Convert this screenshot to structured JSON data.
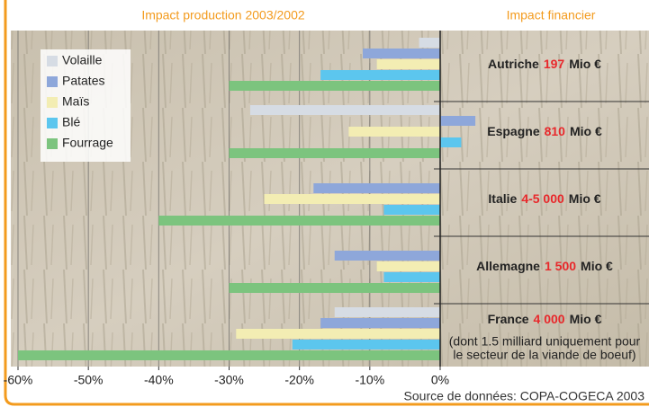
{
  "chart_data": {
    "type": "bar",
    "orientation": "horizontal",
    "title": "Impact production 2003/2002",
    "right_title": "Impact financier",
    "source": "Source de données: COPA-COGECA 2003",
    "categories": [
      "Autriche",
      "Espagne",
      "Italie",
      "Allemagne",
      "France"
    ],
    "series": [
      {
        "name": "Volaille",
        "color": "#d6dce4",
        "values": [
          -3,
          -27,
          0,
          0,
          -15
        ]
      },
      {
        "name": "Patates",
        "color": "#8ea7da",
        "values": [
          -11,
          5,
          -18,
          -15,
          -17
        ]
      },
      {
        "name": "Maïs",
        "color": "#f3edb3",
        "values": [
          -9,
          -13,
          -25,
          -9,
          -29
        ]
      },
      {
        "name": "Blé",
        "color": "#5cc6ee",
        "values": [
          -17,
          3,
          -8,
          -8,
          -21
        ]
      },
      {
        "name": "Fourrage",
        "color": "#7cc47e",
        "values": [
          -30,
          -30,
          -40,
          -30,
          -60
        ]
      }
    ],
    "impacts": [
      "197",
      "810",
      "4-5 000",
      "1 500",
      "4 000"
    ],
    "impact_unit": "Mio €",
    "france_note": [
      "(dont 1.5 milliard uniquement pour",
      "le secteur de la viande de boeuf)"
    ],
    "xlim": [
      -60,
      0
    ],
    "xticks": [
      {
        "value": -60,
        "label": "-60%"
      },
      {
        "value": -50,
        "label": "-50%"
      },
      {
        "value": -40,
        "label": "-40%"
      },
      {
        "value": -30,
        "label": "-30%"
      },
      {
        "value": -20,
        "label": "-20%"
      },
      {
        "value": -10,
        "label": "-10%"
      },
      {
        "value": 0,
        "label": "0%"
      }
    ],
    "grid": true,
    "legend": "upper left"
  }
}
